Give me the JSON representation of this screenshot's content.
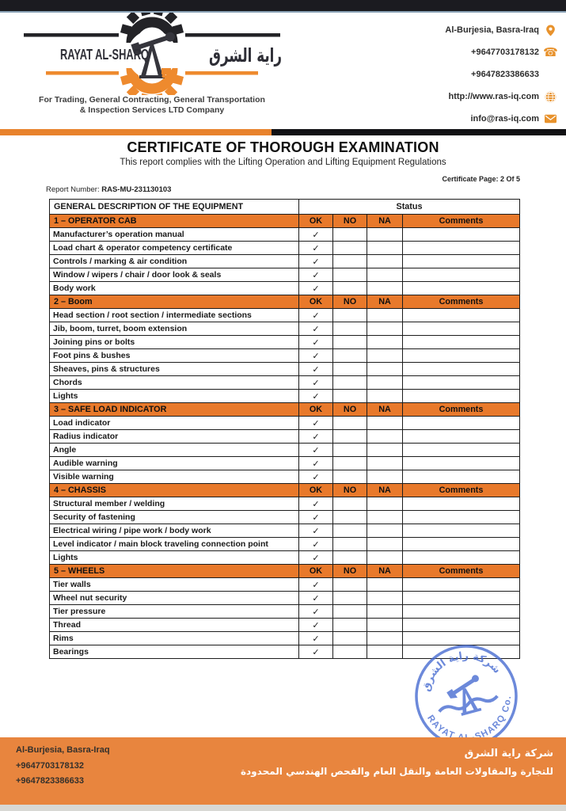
{
  "header": {
    "logo": {
      "name_en": "RAYAT AL-SHARQ",
      "name_ar": "راية الشرق",
      "tagline_line1": "For Trading, General Contracting, General Transportation",
      "tagline_line2": "& Inspection Services LTD Company"
    },
    "contacts": [
      {
        "text": "Al-Burjesia, Basra-Iraq",
        "icon": "location-pin-icon"
      },
      {
        "text": "+9647703178132",
        "icon": "phone-icon"
      },
      {
        "text": "+9647823386633",
        "icon": ""
      },
      {
        "text": "http://www.ras-iq.com",
        "icon": "globe-icon"
      },
      {
        "text": "info@ras-iq.com",
        "icon": "envelope-icon"
      }
    ]
  },
  "document": {
    "title": "CERTIFICATE OF THOROUGH EXAMINATION",
    "subtitle": "This report complies with the Lifting Operation and Lifting Equipment Regulations",
    "certificate_page": "Certificate Page: 2 Of 5",
    "report_number_label": "Report Number:",
    "report_number_value": "RAS-MU-231130103"
  },
  "table": {
    "header": {
      "description": "GENERAL DESCRIPTION OF THE EQUIPMENT",
      "status": "Status"
    },
    "status_columns": [
      "OK",
      "NO",
      "NA",
      "Comments"
    ],
    "check_glyph": "✓",
    "sections": [
      {
        "label": "1 – OPERATOR CAB",
        "items": [
          {
            "label": "Manufacturer’s operation manual",
            "ok": "✓",
            "no": "",
            "na": "",
            "comments": ""
          },
          {
            "label": "Load chart & operator competency certificate",
            "ok": "✓",
            "no": "",
            "na": "",
            "comments": ""
          },
          {
            "label": "Controls / marking & air condition",
            "ok": "✓",
            "no": "",
            "na": "",
            "comments": ""
          },
          {
            "label": "Window / wipers / chair / door look & seals",
            "ok": "✓",
            "no": "",
            "na": "",
            "comments": ""
          },
          {
            "label": "Body work",
            "ok": "✓",
            "no": "",
            "na": "",
            "comments": ""
          }
        ]
      },
      {
        "label": "2 – Boom",
        "items": [
          {
            "label": "Head section / root section / intermediate sections",
            "ok": "✓",
            "no": "",
            "na": "",
            "comments": ""
          },
          {
            "label": "Jib, boom, turret, boom extension",
            "ok": "✓",
            "no": "",
            "na": "",
            "comments": ""
          },
          {
            "label": "Joining pins or bolts",
            "ok": "✓",
            "no": "",
            "na": "",
            "comments": ""
          },
          {
            "label": "Foot pins & bushes",
            "ok": "✓",
            "no": "",
            "na": "",
            "comments": ""
          },
          {
            "label": "Sheaves, pins & structures",
            "ok": "✓",
            "no": "",
            "na": "",
            "comments": ""
          },
          {
            "label": "Chords",
            "ok": "✓",
            "no": "",
            "na": "",
            "comments": ""
          },
          {
            "label": "Lights",
            "ok": "✓",
            "no": "",
            "na": "",
            "comments": ""
          }
        ]
      },
      {
        "label": "3 – SAFE LOAD INDICATOR",
        "items": [
          {
            "label": "Load indicator",
            "ok": "✓",
            "no": "",
            "na": "",
            "comments": ""
          },
          {
            "label": "Radius indicator",
            "ok": "✓",
            "no": "",
            "na": "",
            "comments": ""
          },
          {
            "label": "Angle",
            "ok": "✓",
            "no": "",
            "na": "",
            "comments": ""
          },
          {
            "label": "Audible warning",
            "ok": "✓",
            "no": "",
            "na": "",
            "comments": ""
          },
          {
            "label": "Visible warning",
            "ok": "✓",
            "no": "",
            "na": "",
            "comments": ""
          }
        ]
      },
      {
        "label": "4 – CHASSIS",
        "items": [
          {
            "label": "Structural member / welding",
            "ok": "✓",
            "no": "",
            "na": "",
            "comments": ""
          },
          {
            "label": "Security of fastening",
            "ok": "✓",
            "no": "",
            "na": "",
            "comments": ""
          },
          {
            "label": "Electrical wiring / pipe work / body work",
            "ok": "✓",
            "no": "",
            "na": "",
            "comments": ""
          },
          {
            "label": "Level indicator / main block traveling connection point",
            "ok": "✓",
            "no": "",
            "na": "",
            "comments": ""
          },
          {
            "label": "Lights",
            "ok": "✓",
            "no": "",
            "na": "",
            "comments": ""
          }
        ]
      },
      {
        "label": "5 – WHEELS",
        "items": [
          {
            "label": "Tier walls",
            "ok": "✓",
            "no": "",
            "na": "",
            "comments": ""
          },
          {
            "label": "Wheel nut security",
            "ok": "✓",
            "no": "",
            "na": "",
            "comments": ""
          },
          {
            "label": "Tier pressure",
            "ok": "✓",
            "no": "",
            "na": "",
            "comments": ""
          },
          {
            "label": "Thread",
            "ok": "✓",
            "no": "",
            "na": "",
            "comments": ""
          },
          {
            "label": "Rims",
            "ok": "✓",
            "no": "",
            "na": "",
            "comments": ""
          },
          {
            "label": "Bearings",
            "ok": "✓",
            "no": "",
            "na": "",
            "comments": ""
          }
        ]
      }
    ]
  },
  "stamp": {
    "text_top_ar": "شركة راية الشرق",
    "text_bottom": "RAYAT AL-SHARQ Co."
  },
  "footer": {
    "address": "Al-Burjesia, Basra-Iraq",
    "phone1": "+9647703178132",
    "phone2": "+9647823386633",
    "company_ar_line1": "شركة راية الشرق",
    "company_ar_line2": "للتجارة والمقاولات العامة والنقل العام والفحص الهندسي المحدودة"
  },
  "colors": {
    "accent_orange": "#E8792B",
    "footer_orange": "#E8853E",
    "bar_black": "#1B1B20",
    "stamp_blue": "#4468D0",
    "icon_orange": "#E8922C"
  }
}
